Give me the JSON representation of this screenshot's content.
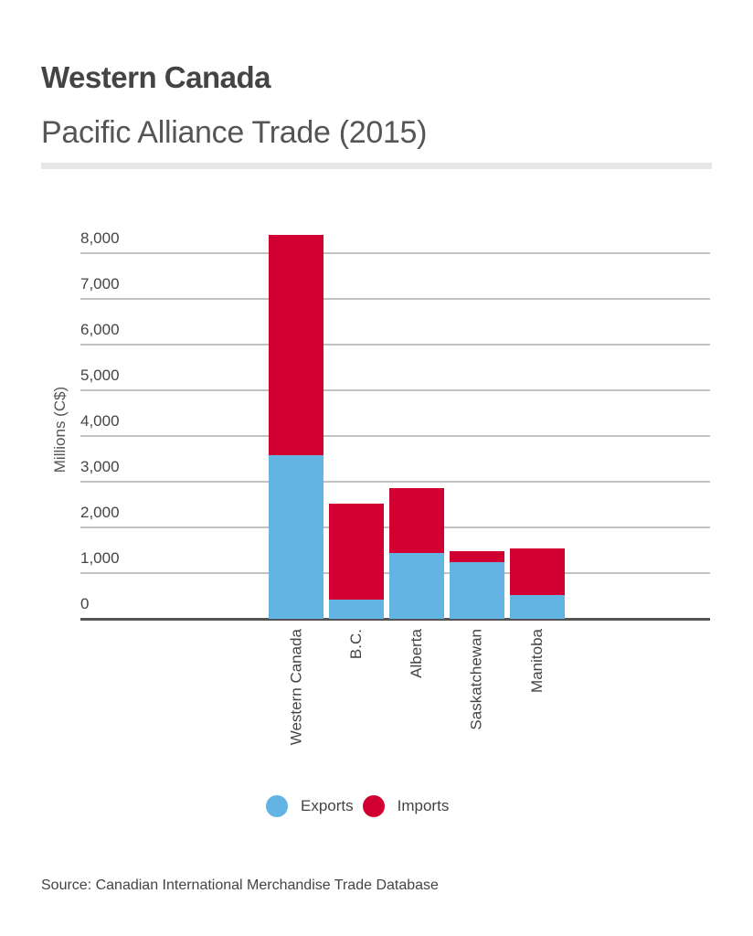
{
  "header": {
    "title": "Western Canada",
    "subtitle": "Pacific Alliance Trade (2015)"
  },
  "axis": {
    "ylabel": "Millions (C$)",
    "yticks": [
      "0",
      "1,000",
      "2,000",
      "3,000",
      "4,000",
      "5,000",
      "6,000",
      "7,000",
      "8,000"
    ]
  },
  "legend": {
    "exports_label": "Exports",
    "imports_label": "Imports"
  },
  "colors": {
    "exports": "#63b3e3",
    "imports": "#d20032"
  },
  "source": "Source: Canadian International Merchandise Trade Database",
  "chart_data": {
    "type": "bar",
    "stacked": true,
    "title": "Western Canada",
    "subtitle": "Pacific Alliance Trade (2015)",
    "xlabel": "",
    "ylabel": "Millions (C$)",
    "ylim": [
      0,
      8400
    ],
    "yticks": [
      0,
      1000,
      2000,
      3000,
      4000,
      5000,
      6000,
      7000,
      8000
    ],
    "grid": true,
    "legend_position": "bottom",
    "categories": [
      "Western Canada",
      "B.C.",
      "Alberta",
      "Saskatchewan",
      "Manitoba"
    ],
    "series": [
      {
        "name": "Exports",
        "color": "#63b3e3",
        "values": [
          3580,
          420,
          1440,
          1240,
          520
        ]
      },
      {
        "name": "Imports",
        "color": "#d20032",
        "values": [
          4820,
          2100,
          1420,
          240,
          1020
        ]
      }
    ],
    "totals": [
      8400,
      2520,
      2860,
      1480,
      1540
    ]
  }
}
